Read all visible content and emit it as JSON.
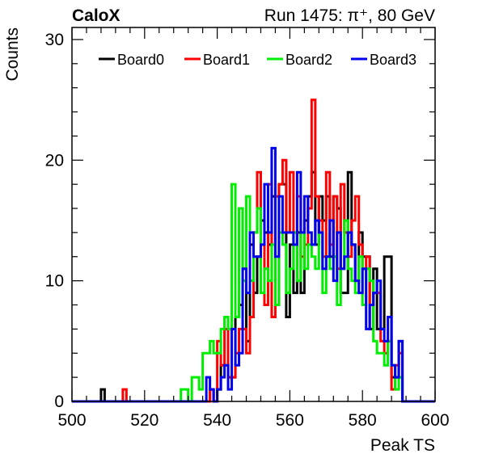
{
  "chart_data": {
    "type": "histogram-step",
    "title_left": "CaloX",
    "title_right": "Run 1475:   π⁺, 80 GeV",
    "xlabel": "Peak TS",
    "ylabel": "Counts",
    "xlim": [
      500,
      600
    ],
    "ylim": [
      0,
      31
    ],
    "x_ticks": [
      500,
      520,
      540,
      560,
      580,
      600
    ],
    "y_ticks": [
      0,
      10,
      20,
      30
    ],
    "bin_width": 1,
    "legend_position": "top",
    "series": [
      {
        "name": "Board0",
        "color": "#000000",
        "start": 540,
        "counts": [
          1,
          3,
          3,
          2,
          2,
          7,
          8,
          11,
          5,
          13,
          9,
          12,
          15,
          14,
          13,
          17,
          8,
          18,
          18,
          7,
          13,
          9,
          14,
          9,
          15,
          17,
          19,
          13,
          17,
          15,
          17,
          12,
          17,
          16,
          9,
          9,
          19,
          13,
          10,
          14,
          12,
          12,
          6,
          11,
          6,
          6,
          12,
          12,
          2,
          2,
          5
        ]
      },
      {
        "name": "Board1",
        "color": "#ff0000",
        "start": 540,
        "counts": [
          5,
          3,
          6,
          2,
          2,
          4,
          6,
          6,
          4,
          7,
          14,
          19,
          13,
          8,
          18,
          7,
          17,
          18,
          20,
          14,
          19,
          14,
          17,
          12,
          13,
          16,
          25,
          17,
          15,
          12,
          19,
          13,
          17,
          11,
          18,
          14,
          12,
          15,
          17,
          13,
          11,
          12,
          8,
          9,
          9,
          5,
          4,
          5,
          1,
          3,
          4
        ]
      },
      {
        "name": "Board2",
        "color": "#00ee00",
        "start": 540,
        "counts": [
          4,
          6,
          7,
          6,
          18,
          7,
          16,
          10,
          17,
          10,
          14,
          16,
          9,
          11,
          10,
          13,
          8,
          14,
          13,
          9,
          11,
          14,
          10,
          14,
          11,
          13,
          12,
          11,
          14,
          9,
          12,
          11,
          12,
          8,
          11,
          15,
          11,
          10,
          9,
          12,
          8,
          11,
          10,
          5,
          4,
          4,
          3,
          5,
          3,
          1,
          2
        ]
      },
      {
        "name": "Board3",
        "color": "#0000ee",
        "start": 540,
        "counts": [
          1,
          2,
          3,
          1,
          6,
          3,
          4,
          11,
          9,
          14,
          12,
          12,
          13,
          18,
          14,
          21,
          12,
          17,
          14,
          14,
          14,
          13,
          19,
          14,
          17,
          14,
          13,
          15,
          14,
          11,
          12,
          15,
          10,
          14,
          11,
          12,
          14,
          13,
          10,
          9,
          11,
          6,
          8,
          9,
          10,
          6,
          5,
          7,
          3,
          2,
          5
        ]
      }
    ],
    "extra_entries": [
      {
        "series": "Board0",
        "x": 508,
        "count": 1
      },
      {
        "series": "Board1",
        "x": 514,
        "count": 1
      },
      {
        "series": "Board2",
        "x": 530,
        "count": 1
      },
      {
        "series": "Board2",
        "x": 531,
        "count": 1
      },
      {
        "series": "Board2",
        "x": 533,
        "count": 2
      },
      {
        "series": "Board2",
        "x": 534,
        "count": 2
      },
      {
        "series": "Board2",
        "x": 535,
        "count": 1
      },
      {
        "series": "Board2",
        "x": 536,
        "count": 4
      },
      {
        "series": "Board2",
        "x": 537,
        "count": 4
      },
      {
        "series": "Board2",
        "x": 538,
        "count": 5
      },
      {
        "series": "Board2",
        "x": 539,
        "count": 4
      },
      {
        "series": "Board3",
        "x": 537,
        "count": 2
      },
      {
        "series": "Board3",
        "x": 538,
        "count": 1
      },
      {
        "series": "Board1",
        "x": 538,
        "count": 1
      },
      {
        "series": "Board0",
        "x": 538,
        "count": 1
      }
    ]
  }
}
